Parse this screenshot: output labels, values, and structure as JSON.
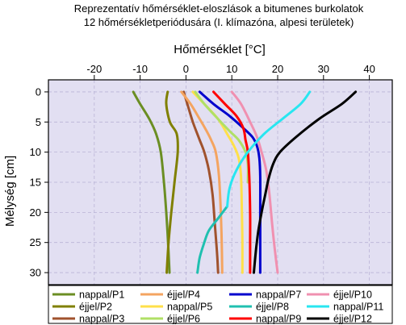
{
  "chart_data": {
    "type": "line",
    "title": [
      "Reprezentatív hőmérséklet-eloszlások a bitumenes burkolatok",
      "12 hőmérsékletperiódusára (I. klímazóna, alpesi területek)"
    ],
    "xlabel": "Hőmérséklet [°C]",
    "ylabel": "Mélység [cm]",
    "xlim": [
      -30,
      45
    ],
    "ylim": [
      32,
      -2
    ],
    "x_axis_position": "top",
    "y_axis_inverted": true,
    "xticks": [
      -20,
      -10,
      0,
      10,
      20,
      30,
      40
    ],
    "xtick_labels": [
      "-20",
      "-10",
      "0",
      "10",
      "20",
      "30",
      "40"
    ],
    "yticks": [
      0,
      5,
      10,
      15,
      20,
      25,
      30
    ],
    "ytick_labels": [
      "0",
      "5",
      "10",
      "15",
      "20",
      "25",
      "30"
    ],
    "grid": true,
    "plot_background": "#e2dff2",
    "legend_position": "bottom",
    "series": [
      {
        "name": "nappal/P1",
        "color": "#6b8e23",
        "points": [
          [
            -11.5,
            0
          ],
          [
            -10,
            2
          ],
          [
            -8,
            4.5
          ],
          [
            -6.5,
            7
          ],
          [
            -5.5,
            10
          ],
          [
            -4.8,
            15
          ],
          [
            -4.3,
            20
          ],
          [
            -3.9,
            25
          ],
          [
            -3.6,
            30
          ]
        ]
      },
      {
        "name": "éjjel/P2",
        "color": "#808000",
        "points": [
          [
            -4,
            0
          ],
          [
            -4.3,
            2
          ],
          [
            -3.5,
            5
          ],
          [
            -2,
            7
          ],
          [
            -1.8,
            10
          ],
          [
            -2.5,
            15
          ],
          [
            -3.2,
            20
          ],
          [
            -3.8,
            25
          ],
          [
            -4.2,
            30
          ]
        ]
      },
      {
        "name": "nappal/P3",
        "color": "#a0522d",
        "points": [
          [
            -0.5,
            0
          ],
          [
            0.3,
            2
          ],
          [
            1.5,
            5
          ],
          [
            3,
            8
          ],
          [
            4,
            10
          ],
          [
            5,
            13
          ],
          [
            5.8,
            17
          ],
          [
            6.3,
            22
          ],
          [
            6.8,
            27
          ],
          [
            7,
            30
          ]
        ]
      },
      {
        "name": "éjjel/P4",
        "color": "#f4a460",
        "points": [
          [
            -1,
            0
          ],
          [
            1,
            2
          ],
          [
            3,
            4.5
          ],
          [
            4.5,
            6.5
          ],
          [
            5.5,
            8
          ],
          [
            6.5,
            10
          ],
          [
            7.2,
            14
          ],
          [
            7.6,
            20
          ],
          [
            7.8,
            25
          ],
          [
            7.9,
            30
          ]
        ]
      },
      {
        "name": "nappal/P5",
        "color": "#ffe04a",
        "points": [
          [
            1.5,
            0
          ],
          [
            4,
            2
          ],
          [
            7,
            4.5
          ],
          [
            9,
            7
          ],
          [
            10.5,
            9
          ],
          [
            11.5,
            11
          ],
          [
            12,
            14
          ],
          [
            12.2,
            20
          ],
          [
            12.3,
            25
          ],
          [
            12.3,
            30
          ]
        ]
      },
      {
        "name": "éjjel/P6",
        "color": "#b0e066",
        "points": [
          [
            2,
            0
          ],
          [
            4,
            2
          ],
          [
            7,
            4.5
          ],
          [
            9.5,
            6.5
          ],
          [
            11.5,
            8
          ],
          [
            13,
            10
          ],
          [
            13.5,
            12
          ],
          [
            13.5,
            15
          ]
        ]
      },
      {
        "name": "nappal/P7",
        "color": "#0000cd",
        "points": [
          [
            3,
            0
          ],
          [
            6,
            2
          ],
          [
            9.5,
            4
          ],
          [
            12.5,
            6
          ],
          [
            14.5,
            7.5
          ],
          [
            15.5,
            9
          ],
          [
            16,
            11
          ],
          [
            16.2,
            14
          ],
          [
            16.2,
            20
          ],
          [
            16.2,
            25
          ],
          [
            16.2,
            30
          ]
        ]
      },
      {
        "name": "éjjel/P8",
        "color": "#20c0b0",
        "points": [
          [
            9,
            19
          ],
          [
            7,
            21
          ],
          [
            5,
            23
          ],
          [
            4,
            25
          ],
          [
            3,
            27.5
          ],
          [
            2.5,
            30
          ]
        ]
      },
      {
        "name": "nappal/P9",
        "color": "#ff0000",
        "points": [
          [
            6,
            0
          ],
          [
            8.5,
            2
          ],
          [
            11,
            4
          ],
          [
            12.5,
            6
          ],
          [
            13,
            8
          ],
          [
            13.5,
            10
          ],
          [
            13.8,
            14
          ],
          [
            14,
            20
          ],
          [
            14,
            25
          ],
          [
            14,
            30
          ]
        ]
      },
      {
        "name": "éjjel/P10",
        "color": "#f090b0",
        "points": [
          [
            10,
            0
          ],
          [
            12,
            2
          ],
          [
            14,
            5
          ],
          [
            15.5,
            7.5
          ],
          [
            16.5,
            10
          ],
          [
            17.5,
            13
          ],
          [
            18.2,
            17
          ],
          [
            18.8,
            22
          ],
          [
            19.5,
            27
          ],
          [
            20,
            30
          ]
        ]
      },
      {
        "name": "nappal/P11",
        "color": "#28e6f0",
        "points": [
          [
            27,
            0
          ],
          [
            25,
            2
          ],
          [
            21,
            4.5
          ],
          [
            17,
            7
          ],
          [
            13.5,
            10
          ],
          [
            11,
            13
          ],
          [
            9.5,
            16
          ],
          [
            9,
            19
          ]
        ]
      },
      {
        "name": "éjjel/P12",
        "color": "#000000",
        "points": [
          [
            37,
            0
          ],
          [
            34,
            2
          ],
          [
            29,
            4.5
          ],
          [
            24,
            7.5
          ],
          [
            20.5,
            10
          ],
          [
            19,
            12
          ],
          [
            18,
            14.5
          ],
          [
            17.3,
            17
          ],
          [
            16.5,
            20
          ],
          [
            15.8,
            23
          ],
          [
            15.3,
            26
          ],
          [
            14.8,
            30
          ]
        ]
      }
    ]
  }
}
